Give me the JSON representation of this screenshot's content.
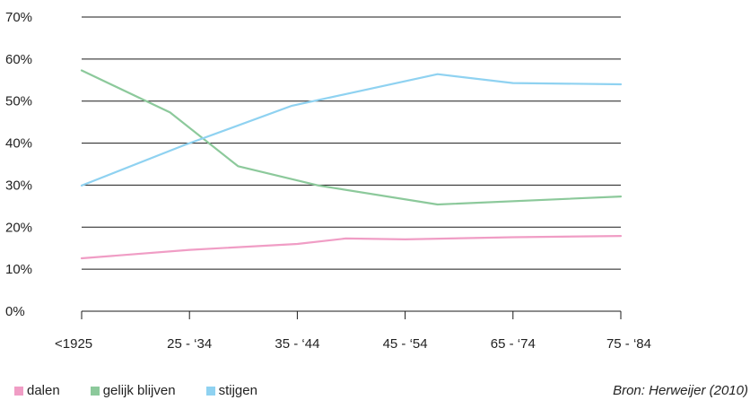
{
  "chart_data": {
    "type": "line",
    "categories": [
      "<1925",
      "25 - ‘34",
      "35 - ‘44",
      "45 - ‘54",
      "65 - ‘74",
      "75 - ‘84"
    ],
    "yticks": [
      "0%",
      "10%",
      "20%",
      "30%",
      "40%",
      "50%",
      "60%",
      "70%"
    ],
    "ylim": [
      0,
      70
    ],
    "grid": true,
    "legend_position": "bottom-left",
    "series": [
      {
        "name": "dalen",
        "color": "#f09dc5",
        "points": [
          [
            0,
            12.6
          ],
          [
            1,
            14.6
          ],
          [
            2,
            16.0
          ],
          [
            2.45,
            17.3
          ],
          [
            3,
            17.1
          ],
          [
            4,
            17.6
          ],
          [
            5,
            17.9
          ]
        ]
      },
      {
        "name": "gelijk blijven",
        "color": "#8cc99b",
        "points": [
          [
            0,
            57.3
          ],
          [
            0.82,
            47.3
          ],
          [
            1.45,
            34.5
          ],
          [
            2.2,
            29.9
          ],
          [
            3.3,
            25.4
          ],
          [
            5,
            27.3
          ]
        ]
      },
      {
        "name": "stijgen",
        "color": "#8fd2f1",
        "points": [
          [
            0,
            29.9
          ],
          [
            0.95,
            39.5
          ],
          [
            1.95,
            48.9
          ],
          [
            3.3,
            56.4
          ],
          [
            4,
            54.3
          ],
          [
            5,
            54.0
          ]
        ]
      }
    ]
  },
  "source": "Bron: Herweijer (2010)"
}
